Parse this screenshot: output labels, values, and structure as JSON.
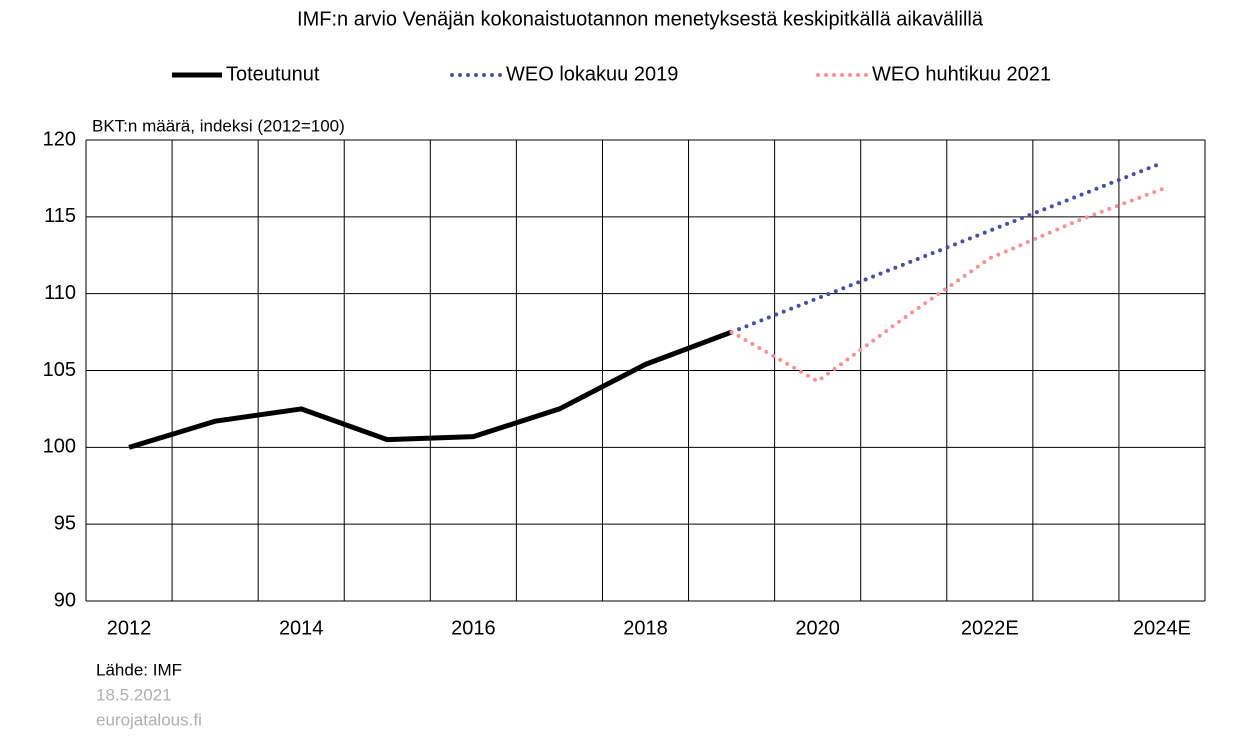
{
  "chart_data": {
    "type": "line",
    "title": "IMF:n arvio Venäjän kokonaistuotannon menetyksestä keskipitkällä aikavälillä",
    "y_label": "BKT:n määrä, indeksi (2012=100)",
    "categories": [
      "2012",
      null,
      "2014",
      null,
      "2016",
      null,
      "2018",
      null,
      "2020",
      null,
      "2022E",
      null,
      "2024E"
    ],
    "series": [
      {
        "name": "Toteutunut",
        "color": "#000000",
        "style": "solid",
        "values": [
          100,
          101.7,
          102.5,
          100.5,
          100.7,
          102.5,
          105.4,
          107.5,
          null,
          null,
          null,
          null,
          null
        ]
      },
      {
        "name": "WEO lokakuu 2019",
        "color": "#4a4fa0",
        "style": "dotted",
        "values": [
          null,
          null,
          null,
          null,
          null,
          null,
          null,
          107.5,
          109.7,
          111.9,
          114.1,
          116.3,
          118.5
        ]
      },
      {
        "name": "WEO huhtikuu 2021",
        "color": "#f4939a",
        "style": "dotted",
        "values": [
          null,
          null,
          null,
          null,
          null,
          null,
          null,
          107.5,
          104.3,
          108.4,
          112.3,
          114.7,
          116.8
        ]
      }
    ],
    "ylim": [
      90,
      120
    ],
    "yticks": [
      90,
      95,
      100,
      105,
      110,
      115,
      120
    ],
    "grid": true,
    "source": "Lähde: IMF",
    "footnotes": [
      "18.5.2021",
      "eurojatalous.fi"
    ]
  }
}
